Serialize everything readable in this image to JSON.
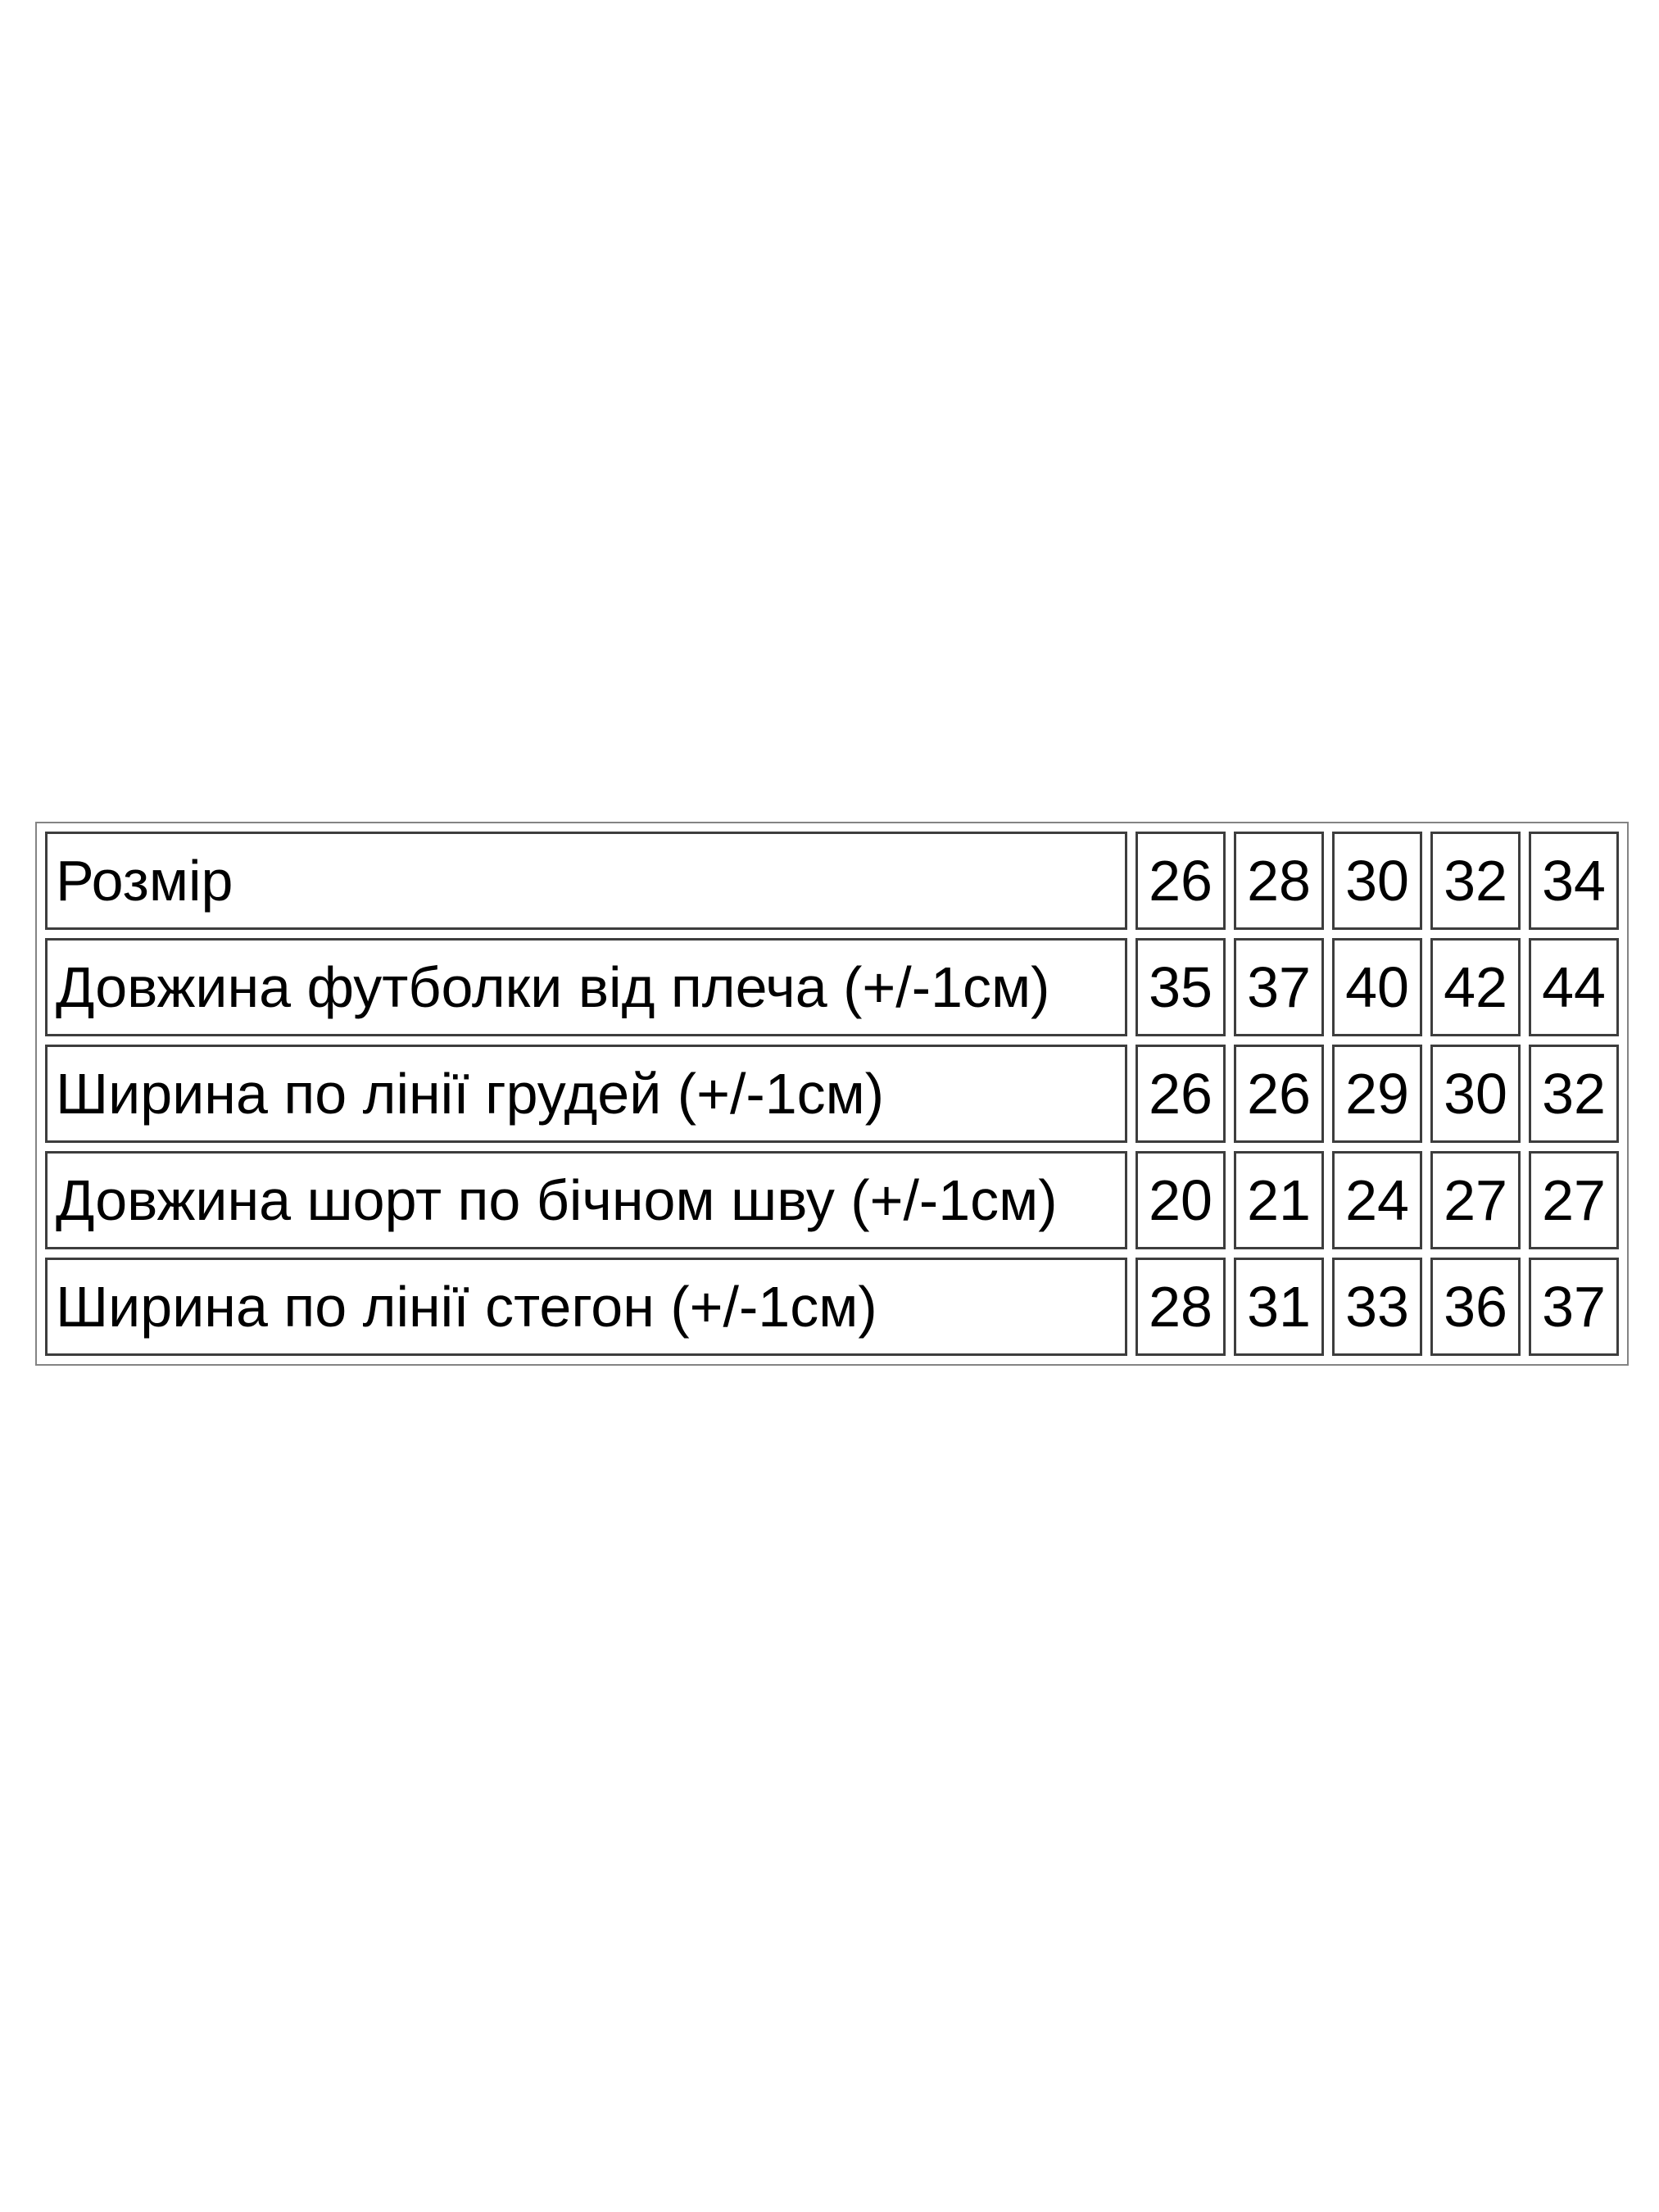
{
  "size_chart": {
    "rows": [
      {
        "label": "Розмір",
        "values": [
          "26",
          "28",
          "30",
          "32",
          "34"
        ]
      },
      {
        "label": "Довжина футболки від плеча (+/-1см)",
        "values": [
          "35",
          "37",
          "40",
          "42",
          "44"
        ]
      },
      {
        "label": "Ширина по лінії грудей (+/-1см)",
        "values": [
          "26",
          "26",
          "29",
          "30",
          "32"
        ]
      },
      {
        "label": "Довжина шорт по бічном шву (+/-1см)",
        "values": [
          "20",
          "21",
          "24",
          "27",
          "27"
        ]
      },
      {
        "label": "Ширина по лінії стегон (+/-1см)",
        "values": [
          "28",
          "31",
          "33",
          "36",
          "37"
        ]
      }
    ],
    "colors": {
      "text": "#000000",
      "cell_border": "#3d3d3d",
      "outer_border": "#848484",
      "background": "#ffffff"
    }
  }
}
